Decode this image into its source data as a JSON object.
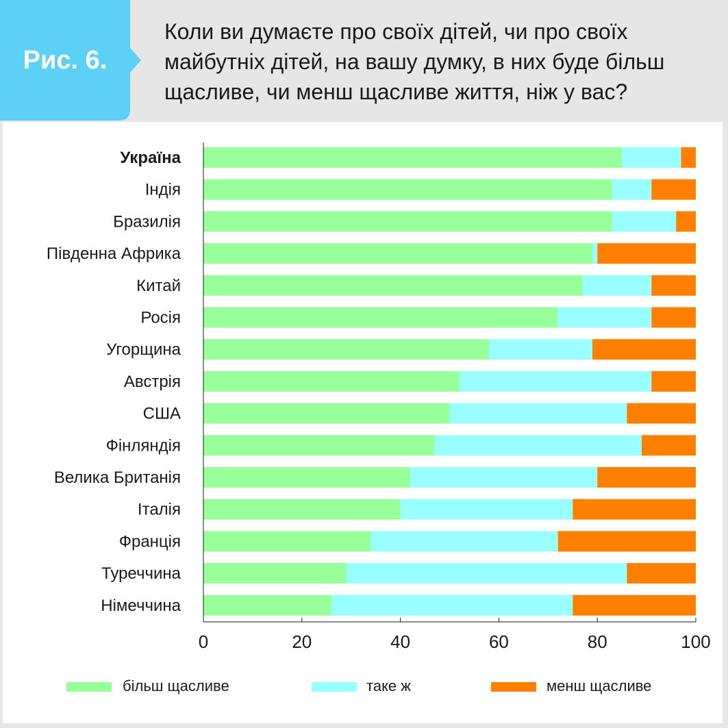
{
  "header": {
    "figure_label": "Рис. 6.",
    "question": "Коли ви думаєте про своїх дітей, чи про своїх майбутніх дітей, на вашу думку, в них буде більш щасливе, чи менш щасливе життя, ніж у вас?"
  },
  "colors": {
    "badge": "#5dd0f5",
    "more_happy": "#99ff99",
    "same": "#99ffff",
    "less_happy": "#ff8000"
  },
  "chart_data": {
    "type": "bar",
    "orientation": "horizontal",
    "stacked": true,
    "categories": [
      "Україна",
      "Індія",
      "Бразилія",
      "Південна Африка",
      "Китай",
      "Росія",
      "Угорщина",
      "Австрія",
      "США",
      "Фінляндія",
      "Велика Британія",
      "Італія",
      "Франція",
      "Туреччина",
      "Німеччина"
    ],
    "highlight_category": "Україна",
    "series": [
      {
        "name": "більш щасливе",
        "color": "#99ff99",
        "values": [
          85,
          83,
          83,
          79,
          77,
          72,
          58,
          52,
          50,
          47,
          42,
          40,
          34,
          29,
          26
        ]
      },
      {
        "name": "таке ж",
        "color": "#99ffff",
        "values": [
          12,
          8,
          13,
          1,
          14,
          19,
          21,
          39,
          36,
          42,
          38,
          35,
          38,
          57,
          49
        ]
      },
      {
        "name": "менш щасливе",
        "color": "#ff8000",
        "values": [
          3,
          9,
          4,
          20,
          9,
          9,
          21,
          9,
          14,
          11,
          20,
          25,
          28,
          14,
          25
        ]
      }
    ],
    "xlim": [
      0,
      100
    ],
    "xticks": [
      0,
      20,
      40,
      60,
      80,
      100
    ],
    "legend_position": "bottom",
    "grid": false
  }
}
